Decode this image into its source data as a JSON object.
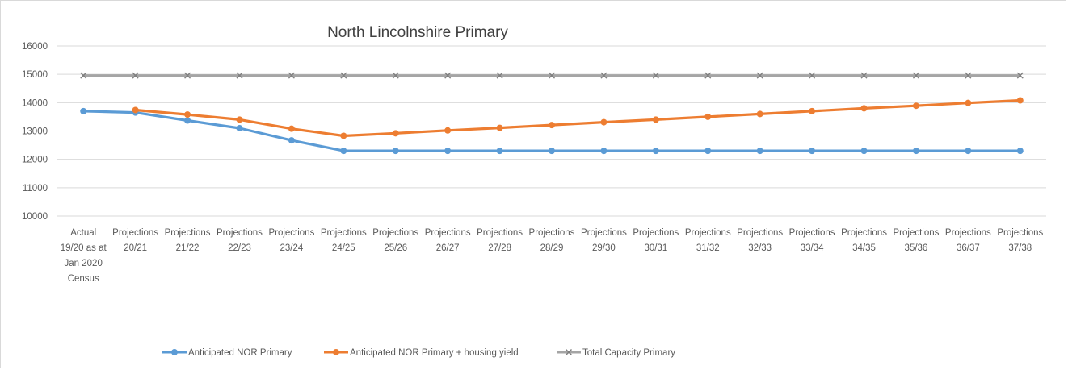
{
  "chart_data": {
    "type": "line",
    "title": "North Lincolnshire Primary",
    "xlabel": "",
    "ylabel": "",
    "ylim": [
      10000,
      16000
    ],
    "yticks": [
      "16000",
      "15000",
      "14000",
      "13000",
      "12000",
      "11000",
      "10000"
    ],
    "grid": true,
    "legend_position": "bottom",
    "categories": [
      [
        "Actual",
        "19/20 as at",
        "Jan 2020",
        "Census"
      ],
      [
        "Projections",
        "20/21"
      ],
      [
        "Projections",
        "21/22"
      ],
      [
        "Projections",
        "22/23"
      ],
      [
        "Projections",
        "23/24"
      ],
      [
        "Projections",
        "24/25"
      ],
      [
        "Projections",
        "25/26"
      ],
      [
        "Projections",
        "26/27"
      ],
      [
        "Projections",
        "27/28"
      ],
      [
        "Projections",
        "28/29"
      ],
      [
        "Projections",
        "29/30"
      ],
      [
        "Projections",
        "30/31"
      ],
      [
        "Projections",
        "31/32"
      ],
      [
        "Projections",
        "32/33"
      ],
      [
        "Projections",
        "33/34"
      ],
      [
        "Projections",
        "34/35"
      ],
      [
        "Projections",
        "35/36"
      ],
      [
        "Projections",
        "36/37"
      ],
      [
        "Projections",
        "37/38"
      ]
    ],
    "series": [
      {
        "name": "Anticipated NOR Primary",
        "color": "#5b9bd5",
        "marker": "circle",
        "values": [
          13700,
          13650,
          13370,
          13100,
          12670,
          12300,
          12300,
          12300,
          12300,
          12300,
          12300,
          12300,
          12300,
          12300,
          12300,
          12300,
          12300,
          12300,
          12300
        ]
      },
      {
        "name": "Anticipated NOR Primary + housing yield",
        "color": "#ed7d31",
        "marker": "circle",
        "values": [
          null,
          13740,
          13580,
          13400,
          13080,
          12830,
          12920,
          13020,
          13110,
          13210,
          13310,
          13400,
          13500,
          13600,
          13700,
          13800,
          13890,
          13990,
          14080
        ]
      },
      {
        "name": "Total Capacity Primary",
        "color": "#a5a5a5",
        "marker": "x",
        "values": [
          14960,
          14960,
          14960,
          14960,
          14960,
          14960,
          14960,
          14960,
          14960,
          14960,
          14960,
          14960,
          14960,
          14960,
          14960,
          14960,
          14960,
          14960,
          14960
        ]
      }
    ]
  }
}
